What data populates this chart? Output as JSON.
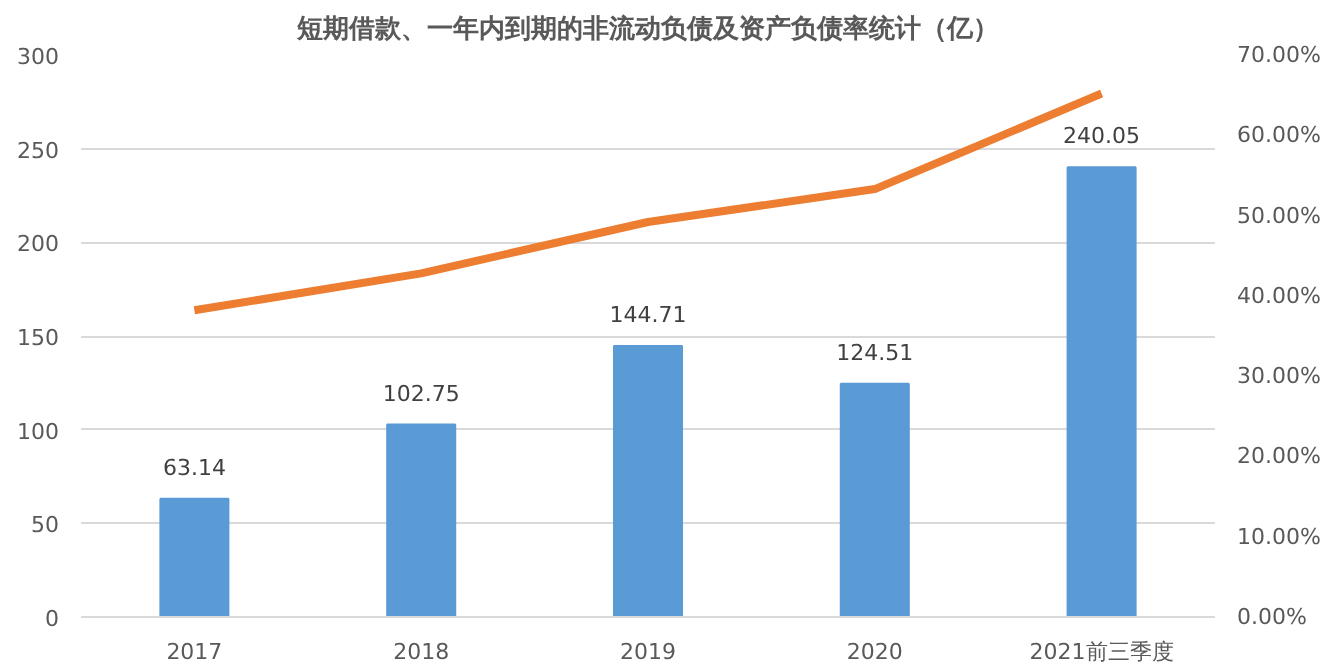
{
  "chart_data": {
    "type": "bar",
    "title": "短期借款、一年内到期的非流动负债及资产负债率统计（亿）",
    "categories": [
      "2017",
      "2018",
      "2019",
      "2020",
      "2021前三季度"
    ],
    "series": [
      {
        "color": "#5b9bd5",
        "values": [
          63.14,
          102.75,
          144.71,
          124.51,
          240.05
        ],
        "value_labels": [
          "63.14",
          "102.75",
          "144.71",
          "124.51",
          "240.05"
        ]
      },
      {
        "type": "line",
        "axis": "y2",
        "color": "#ed7d31",
        "values": [
          38.2,
          42.8,
          49.2,
          53.3,
          65.2
        ]
      }
    ],
    "ylim": [
      0,
      300
    ],
    "yticks": [
      0,
      50,
      100,
      150,
      200,
      250,
      300
    ],
    "y2lim": [
      0,
      70
    ],
    "y2ticks": [
      {
        "value": 0,
        "label": "0.00%"
      },
      {
        "value": 10,
        "label": "10.00%"
      },
      {
        "value": 20,
        "label": "20.00%"
      },
      {
        "value": 30,
        "label": "30.00%"
      },
      {
        "value": 40,
        "label": "40.00%"
      },
      {
        "value": 50,
        "label": "50.00%"
      },
      {
        "value": 60,
        "label": "60.00%"
      },
      {
        "value": 70,
        "label": "70.00%"
      }
    ],
    "grid": "y",
    "line_style": "solid",
    "marker": "none"
  }
}
